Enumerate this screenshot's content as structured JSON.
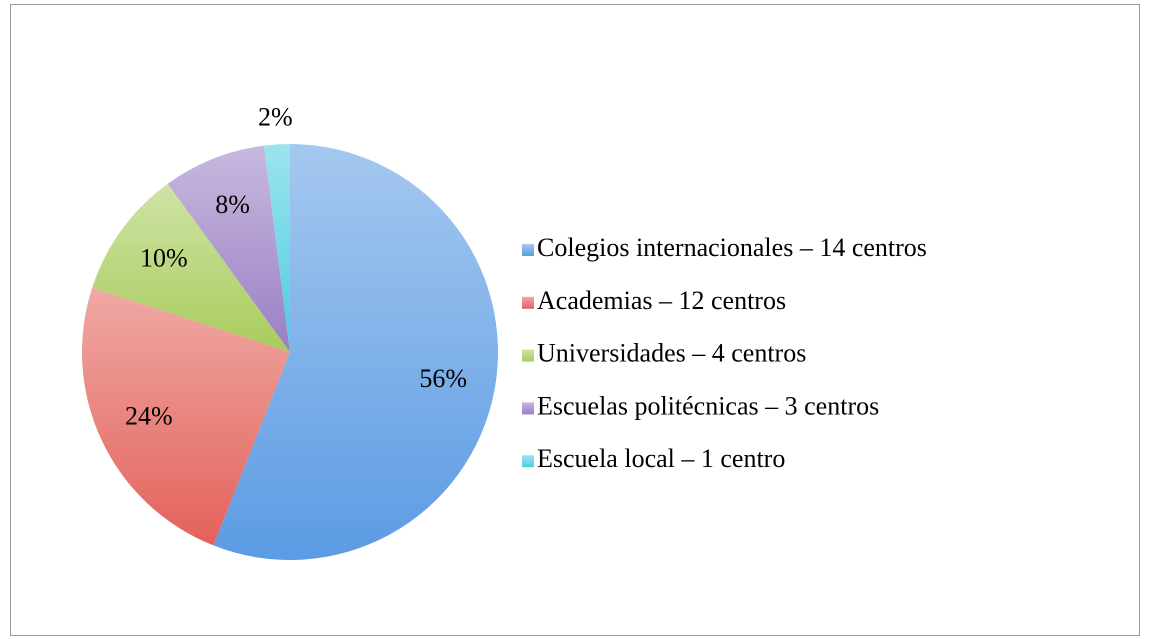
{
  "chart_data": {
    "type": "pie",
    "categories": [
      "Colegios internacionales – 14 centros",
      "Academias – 12 centros",
      "Universidades – 4 centros",
      "Escuelas politécnicas – 3 centros",
      "Escuela local – 1 centro"
    ],
    "values": [
      56,
      24,
      10,
      8,
      2
    ],
    "value_labels": [
      "56%",
      "24%",
      "10%",
      "8%",
      "2%"
    ],
    "colors": [
      "#5b9be3",
      "#e3625a",
      "#a8cc5c",
      "#9a7fc4",
      "#4ccde0"
    ],
    "legend": "right"
  }
}
